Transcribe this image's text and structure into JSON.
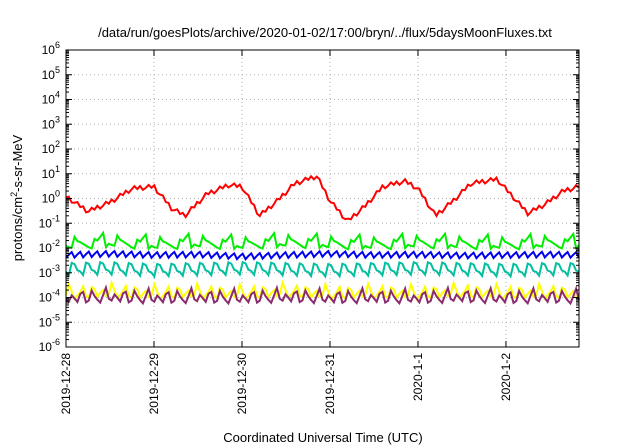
{
  "chart_data": {
    "type": "line",
    "title": "/data/run/goesPlots/archive/2020-01-02/17:00/bryn/../flux/5daysMoonFluxes.txt",
    "xlabel": "Coordinated Universal Time (UTC)",
    "ylabel": {
      "prefix": "protons/cm",
      "sup": "2",
      "suffix": "-s-sr-MeV"
    },
    "yscale": "log",
    "ylim_exponents": [
      -6,
      6
    ],
    "y_ticks": [
      {
        "base": "10",
        "exp": "-6"
      },
      {
        "base": "10",
        "exp": "-5"
      },
      {
        "base": "10",
        "exp": "-4"
      },
      {
        "base": "10",
        "exp": "-3"
      },
      {
        "base": "10",
        "exp": "-2"
      },
      {
        "base": "10",
        "exp": "-1"
      },
      {
        "base": "10",
        "exp": "0"
      },
      {
        "base": "10",
        "exp": "1"
      },
      {
        "base": "10",
        "exp": "2"
      },
      {
        "base": "10",
        "exp": "3"
      },
      {
        "base": "10",
        "exp": "4"
      },
      {
        "base": "10",
        "exp": "5"
      },
      {
        "base": "10",
        "exp": "6"
      }
    ],
    "x_range_days": [
      0,
      5.83
    ],
    "x_ticks": [
      {
        "day": 0,
        "label": "2019-12-28"
      },
      {
        "day": 1,
        "label": "2019-12-29"
      },
      {
        "day": 2,
        "label": "2019-12-30"
      },
      {
        "day": 3,
        "label": "2019-12-31"
      },
      {
        "day": 4,
        "label": "2020-1-1"
      },
      {
        "day": 5,
        "label": "2020-1-2"
      }
    ],
    "grid": true,
    "series": [
      {
        "color": "#ff0000",
        "x": [
          0,
          0.25,
          0.5,
          0.75,
          1.0,
          1.2,
          1.35,
          1.6,
          1.85,
          2.0,
          2.2,
          2.4,
          2.6,
          2.85,
          3.0,
          3.2,
          3.4,
          3.6,
          3.85,
          4.0,
          4.2,
          4.4,
          4.6,
          4.9,
          5.05,
          5.25,
          5.45,
          5.65,
          5.83
        ],
        "y": [
          1.2,
          0.3,
          0.7,
          2.5,
          3,
          0.4,
          0.2,
          1.5,
          3.5,
          3,
          0.2,
          0.8,
          4,
          8,
          0.8,
          0.12,
          0.5,
          3,
          5,
          2.5,
          0.2,
          0.8,
          4,
          6,
          1.5,
          0.25,
          0.6,
          2,
          3
        ]
      },
      {
        "color": "#00ee00",
        "x": [
          0,
          0.5,
          1.0,
          1.5,
          2.0,
          2.5,
          3.0,
          3.5,
          4.0,
          4.5,
          5.0,
          5.5,
          5.83
        ],
        "y": [
          0.012,
          0.015,
          0.012,
          0.014,
          0.012,
          0.015,
          0.013,
          0.012,
          0.014,
          0.013,
          0.012,
          0.014,
          0.013
        ]
      },
      {
        "color": "#0000ee",
        "x": [
          0,
          0.5,
          1.0,
          1.5,
          2.0,
          2.5,
          3.0,
          3.5,
          4.0,
          4.5,
          5.0,
          5.5,
          5.83
        ],
        "y": [
          0.004,
          0.0045,
          0.004,
          0.0042,
          0.0035,
          0.004,
          0.0045,
          0.004,
          0.0042,
          0.0038,
          0.004,
          0.0042,
          0.004
        ]
      },
      {
        "color": "#00c0a0",
        "x": [
          0,
          0.5,
          1.0,
          1.5,
          2.0,
          2.5,
          3.0,
          3.5,
          4.0,
          4.5,
          5.0,
          5.5,
          5.83
        ],
        "y": [
          0.0011,
          0.0012,
          0.001,
          0.0011,
          0.0012,
          0.0011,
          0.001,
          0.0011,
          0.0012,
          0.0011,
          0.001,
          0.0011,
          0.0011
        ]
      },
      {
        "color": "#ffff00",
        "x": [
          0,
          0.5,
          1.0,
          1.5,
          2.0,
          2.5,
          3.0,
          3.5,
          4.0,
          4.5,
          5.0,
          5.5,
          5.83
        ],
        "y": [
          0.00012,
          0.00014,
          0.00012,
          0.00013,
          0.00012,
          0.00014,
          0.00012,
          0.00013,
          0.00012,
          0.00014,
          0.00012,
          0.00013,
          0.00012
        ]
      },
      {
        "color": "#8b2a6e",
        "x": [
          0,
          0.5,
          1.0,
          1.5,
          2.0,
          2.5,
          3.0,
          3.5,
          4.0,
          4.5,
          5.0,
          5.5,
          5.83
        ],
        "y": [
          8e-05,
          9e-05,
          8e-05,
          8.5e-05,
          8e-05,
          9e-05,
          8e-05,
          8.5e-05,
          8e-05,
          9e-05,
          8e-05,
          8.5e-05,
          8e-05
        ]
      }
    ]
  }
}
